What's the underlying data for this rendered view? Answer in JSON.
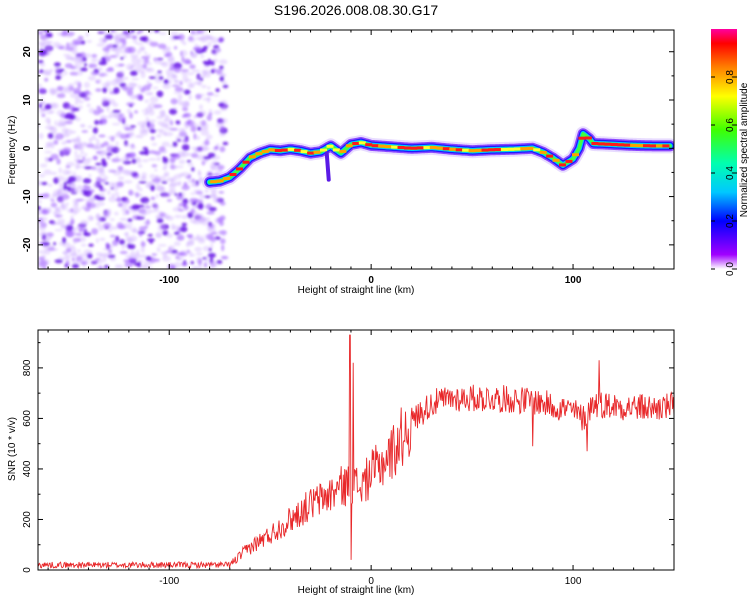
{
  "chart_data": [
    {
      "type": "heatmap",
      "title": "S196.2026.008.08.30.G17",
      "xlabel": "Height of straight line (km)",
      "ylabel": "Frequency (Hz)",
      "xlim": [
        -165,
        150
      ],
      "ylim": [
        -25,
        24.5
      ],
      "xticks": [
        -100,
        0,
        100
      ],
      "yticks": [
        -20,
        -10,
        0,
        10,
        20
      ],
      "colorbar": {
        "label": "Normalized spectral amplitude",
        "range": [
          0,
          1
        ],
        "ticks": [
          "0.0",
          "0.2",
          "0.4",
          "0.6",
          "0.8"
        ]
      },
      "noise_region_x": [
        -165,
        -78
      ],
      "ridge": {
        "x": [
          -80,
          -75,
          -70,
          -65,
          -60,
          -55,
          -50,
          -45,
          -40,
          -35,
          -30,
          -25,
          -20,
          -15,
          -10,
          -5,
          0,
          10,
          20,
          30,
          40,
          50,
          60,
          70,
          80,
          85,
          90,
          95,
          100,
          103,
          105,
          108,
          110,
          120,
          130,
          140,
          148
        ],
        "freq": [
          -7,
          -6.8,
          -6,
          -4.2,
          -2,
          -1,
          -0.3,
          -0.5,
          -0.2,
          -0.5,
          -1,
          -0.7,
          0.5,
          -1,
          0.8,
          1.2,
          0.6,
          0.3,
          0,
          0.2,
          -0.2,
          -0.5,
          -0.3,
          -0.2,
          0,
          -0.8,
          -2,
          -3.5,
          -2.2,
          0,
          3,
          2,
          1,
          0.8,
          0.6,
          0.5,
          0.5
        ]
      }
    },
    {
      "type": "line",
      "xlabel": "Height of straight line (km)",
      "ylabel": "SNR (10 * v/v)",
      "xlim": [
        -165,
        150
      ],
      "ylim": [
        0,
        950
      ],
      "xticks": [
        -100,
        0,
        100
      ],
      "yticks": [
        0,
        200,
        400,
        600,
        800
      ],
      "series": [
        {
          "name": "SNR",
          "color": "#e8282a",
          "trend_x": [
            -165,
            -70,
            -60,
            -50,
            -40,
            -30,
            -20,
            -15,
            -10,
            -5,
            0,
            10,
            20,
            30,
            40,
            60,
            80,
            100,
            105,
            110,
            120,
            140,
            150
          ],
          "trend_y": [
            20,
            20,
            90,
            140,
            200,
            260,
            300,
            330,
            340,
            330,
            380,
            460,
            590,
            660,
            680,
            680,
            670,
            630,
            600,
            660,
            650,
            640,
            650
          ],
          "spikes": [
            {
              "x": -10.5,
              "y": 930
            },
            {
              "x": -10,
              "y": 40
            },
            {
              "x": -9,
              "y": 820
            },
            {
              "x": 113,
              "y": 830
            },
            {
              "x": 80,
              "y": 490
            },
            {
              "x": 107,
              "y": 470
            }
          ]
        }
      ]
    }
  ]
}
